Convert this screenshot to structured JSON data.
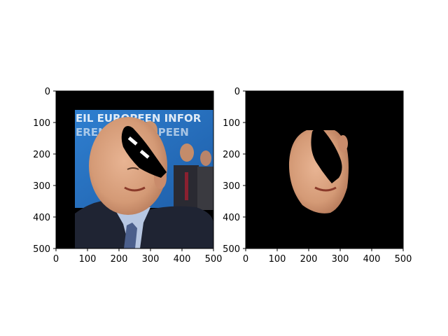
{
  "chart_data": [
    {
      "type": "image",
      "title": "",
      "xlabel": "",
      "ylabel": "",
      "xlim": [
        0,
        500
      ],
      "ylim": [
        500,
        0
      ],
      "xticks": [
        0,
        100,
        200,
        300,
        400,
        500
      ],
      "yticks": [
        0,
        100,
        200,
        300,
        400,
        500
      ],
      "xtick_labels": [
        "0",
        "100",
        "200",
        "300",
        "400",
        "500"
      ],
      "ytick_labels": [
        "0",
        "100",
        "200",
        "300",
        "400",
        "500"
      ],
      "content": "photo-with-occlusion"
    },
    {
      "type": "image",
      "title": "",
      "xlabel": "",
      "ylabel": "",
      "xlim": [
        0,
        500
      ],
      "ylim": [
        500,
        0
      ],
      "xticks": [
        0,
        100,
        200,
        300,
        400,
        500
      ],
      "yticks": [
        0,
        100,
        200,
        300,
        400,
        500
      ],
      "xtick_labels": [
        "0",
        "100",
        "200",
        "300",
        "400",
        "500"
      ],
      "ytick_labels": [
        "0",
        "100",
        "200",
        "300",
        "400",
        "500"
      ],
      "content": "segmented-face"
    }
  ],
  "colors": {
    "background_mask": "#000000",
    "banner_blue": "#2f78c8",
    "skin": "#d9a27f"
  }
}
